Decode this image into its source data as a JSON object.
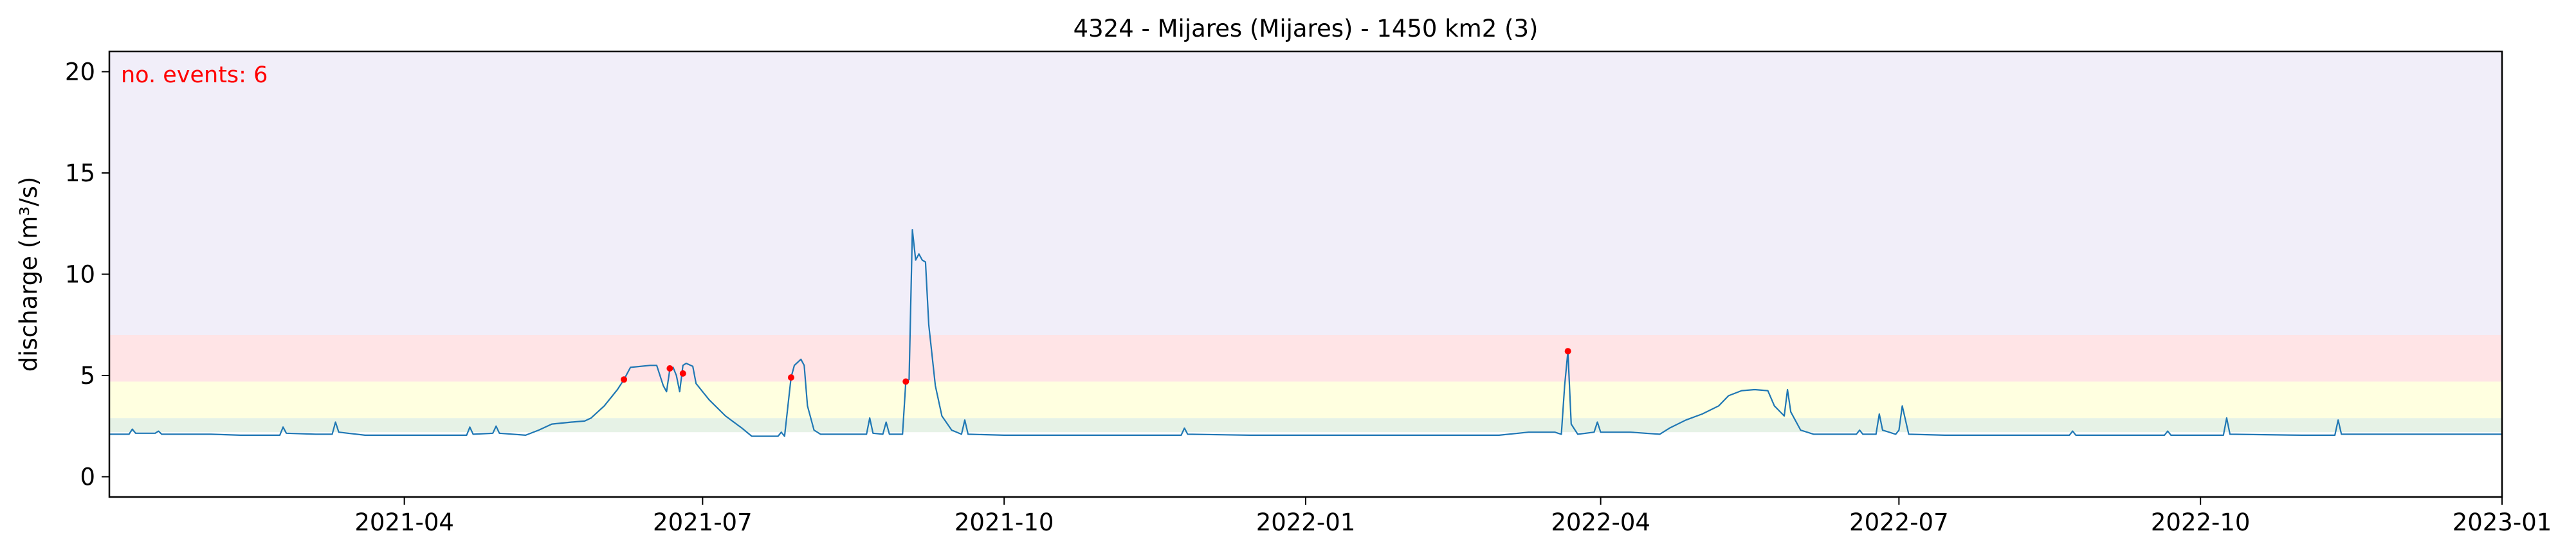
{
  "chart_data": {
    "type": "line",
    "title": "4324 - Mijares (Mijares) - 1450 km2 (3)",
    "xlabel": "",
    "ylabel": "discharge (m³/s)",
    "ylim": [
      -1,
      21
    ],
    "xlim": [
      "2021-01-01",
      "2023-01-01"
    ],
    "yticks": [
      0,
      5,
      10,
      15,
      20
    ],
    "xticks": [
      "2021-04-01",
      "2021-07-01",
      "2021-10-01",
      "2022-01-01",
      "2022-04-01",
      "2022-07-01",
      "2022-10-01",
      "2023-01-01"
    ],
    "xtick_labels": [
      "2021-04",
      "2021-07",
      "2021-10",
      "2022-01",
      "2022-04",
      "2022-07",
      "2022-10",
      "2023-01"
    ],
    "annotation": "no. events: 6",
    "annotation_color": "#ff0000",
    "grid": false,
    "bands": [
      {
        "from": 2.2,
        "to": 2.9,
        "color": "#e6f2e6"
      },
      {
        "from": 2.9,
        "to": 4.7,
        "color": "#ffffe0"
      },
      {
        "from": 4.7,
        "to": 7.0,
        "color": "#ffe4e6"
      },
      {
        "from": 7.0,
        "to": 21,
        "color": "#f1eef9"
      }
    ],
    "series": [
      {
        "color": "#1f77b4",
        "points": [
          [
            "2021-01-01",
            2.1
          ],
          [
            "2021-01-07",
            2.1
          ],
          [
            "2021-01-08",
            2.35
          ],
          [
            "2021-01-09",
            2.15
          ],
          [
            "2021-01-15",
            2.15
          ],
          [
            "2021-01-16",
            2.25
          ],
          [
            "2021-01-17",
            2.1
          ],
          [
            "2021-01-25",
            2.1
          ],
          [
            "2021-02-01",
            2.1
          ],
          [
            "2021-02-10",
            2.05
          ],
          [
            "2021-02-22",
            2.05
          ],
          [
            "2021-02-23",
            2.45
          ],
          [
            "2021-02-24",
            2.15
          ],
          [
            "2021-03-05",
            2.1
          ],
          [
            "2021-03-10",
            2.1
          ],
          [
            "2021-03-11",
            2.7
          ],
          [
            "2021-03-12",
            2.2
          ],
          [
            "2021-03-20",
            2.05
          ],
          [
            "2021-04-01",
            2.05
          ],
          [
            "2021-04-10",
            2.05
          ],
          [
            "2021-04-20",
            2.05
          ],
          [
            "2021-04-21",
            2.45
          ],
          [
            "2021-04-22",
            2.1
          ],
          [
            "2021-04-28",
            2.15
          ],
          [
            "2021-04-29",
            2.5
          ],
          [
            "2021-04-30",
            2.15
          ],
          [
            "2021-05-08",
            2.05
          ],
          [
            "2021-05-12",
            2.3
          ],
          [
            "2021-05-16",
            2.6
          ],
          [
            "2021-05-22",
            2.7
          ],
          [
            "2021-05-26",
            2.75
          ],
          [
            "2021-05-28",
            2.9
          ],
          [
            "2021-06-01",
            3.5
          ],
          [
            "2021-06-05",
            4.3
          ],
          [
            "2021-06-07",
            4.8
          ],
          [
            "2021-06-09",
            5.4
          ],
          [
            "2021-06-15",
            5.5
          ],
          [
            "2021-06-17",
            5.5
          ],
          [
            "2021-06-19",
            4.5
          ],
          [
            "2021-06-20",
            4.2
          ],
          [
            "2021-06-21",
            5.3
          ],
          [
            "2021-06-22",
            5.4
          ],
          [
            "2021-06-23",
            5.0
          ],
          [
            "2021-06-24",
            4.2
          ],
          [
            "2021-06-25",
            5.5
          ],
          [
            "2021-06-26",
            5.6
          ],
          [
            "2021-06-28",
            5.45
          ],
          [
            "2021-06-29",
            4.6
          ],
          [
            "2021-07-03",
            3.8
          ],
          [
            "2021-07-08",
            3.0
          ],
          [
            "2021-07-13",
            2.4
          ],
          [
            "2021-07-16",
            2.0
          ],
          [
            "2021-07-20",
            2.0
          ],
          [
            "2021-07-24",
            2.0
          ],
          [
            "2021-07-25",
            2.2
          ],
          [
            "2021-07-26",
            2.0
          ],
          [
            "2021-07-28",
            4.9
          ],
          [
            "2021-07-29",
            5.5
          ],
          [
            "2021-07-31",
            5.8
          ],
          [
            "2021-08-01",
            5.5
          ],
          [
            "2021-08-02",
            3.5
          ],
          [
            "2021-08-04",
            2.3
          ],
          [
            "2021-08-06",
            2.1
          ],
          [
            "2021-08-20",
            2.1
          ],
          [
            "2021-08-21",
            2.9
          ],
          [
            "2021-08-22",
            2.15
          ],
          [
            "2021-08-25",
            2.1
          ],
          [
            "2021-08-26",
            2.7
          ],
          [
            "2021-08-27",
            2.1
          ],
          [
            "2021-08-31",
            2.1
          ],
          [
            "2021-09-01",
            4.7
          ],
          [
            "2021-09-02",
            4.8
          ],
          [
            "2021-09-03",
            12.2
          ],
          [
            "2021-09-04",
            10.7
          ],
          [
            "2021-09-05",
            11.0
          ],
          [
            "2021-09-06",
            10.7
          ],
          [
            "2021-09-07",
            10.6
          ],
          [
            "2021-09-08",
            7.5
          ],
          [
            "2021-09-10",
            4.5
          ],
          [
            "2021-09-12",
            3.0
          ],
          [
            "2021-09-15",
            2.3
          ],
          [
            "2021-09-18",
            2.1
          ],
          [
            "2021-09-19",
            2.8
          ],
          [
            "2021-09-20",
            2.1
          ],
          [
            "2021-10-01",
            2.05
          ],
          [
            "2021-10-15",
            2.05
          ],
          [
            "2021-11-01",
            2.05
          ],
          [
            "2021-11-24",
            2.05
          ],
          [
            "2021-11-25",
            2.4
          ],
          [
            "2021-11-26",
            2.1
          ],
          [
            "2021-12-15",
            2.05
          ],
          [
            "2022-01-01",
            2.05
          ],
          [
            "2022-02-01",
            2.05
          ],
          [
            "2022-03-01",
            2.05
          ],
          [
            "2022-03-10",
            2.2
          ],
          [
            "2022-03-18",
            2.2
          ],
          [
            "2022-03-20",
            2.1
          ],
          [
            "2022-03-21",
            4.5
          ],
          [
            "2022-03-22",
            6.2
          ],
          [
            "2022-03-23",
            2.6
          ],
          [
            "2022-03-25",
            2.1
          ],
          [
            "2022-03-30",
            2.2
          ],
          [
            "2022-03-31",
            2.7
          ],
          [
            "2022-04-01",
            2.2
          ],
          [
            "2022-04-10",
            2.2
          ],
          [
            "2022-04-19",
            2.1
          ],
          [
            "2022-04-22",
            2.4
          ],
          [
            "2022-04-27",
            2.8
          ],
          [
            "2022-05-02",
            3.1
          ],
          [
            "2022-05-07",
            3.5
          ],
          [
            "2022-05-10",
            4.0
          ],
          [
            "2022-05-14",
            4.25
          ],
          [
            "2022-05-18",
            4.3
          ],
          [
            "2022-05-22",
            4.25
          ],
          [
            "2022-05-24",
            3.5
          ],
          [
            "2022-05-27",
            3.0
          ],
          [
            "2022-05-28",
            4.3
          ],
          [
            "2022-05-29",
            3.2
          ],
          [
            "2022-06-01",
            2.3
          ],
          [
            "2022-06-05",
            2.1
          ],
          [
            "2022-06-18",
            2.1
          ],
          [
            "2022-06-19",
            2.3
          ],
          [
            "2022-06-20",
            2.1
          ],
          [
            "2022-06-24",
            2.1
          ],
          [
            "2022-06-25",
            3.1
          ],
          [
            "2022-06-26",
            2.3
          ],
          [
            "2022-06-30",
            2.1
          ],
          [
            "2022-07-01",
            2.3
          ],
          [
            "2022-07-02",
            3.5
          ],
          [
            "2022-07-03",
            2.8
          ],
          [
            "2022-07-04",
            2.1
          ],
          [
            "2022-07-15",
            2.05
          ],
          [
            "2022-08-01",
            2.05
          ],
          [
            "2022-08-22",
            2.05
          ],
          [
            "2022-08-23",
            2.25
          ],
          [
            "2022-08-24",
            2.05
          ],
          [
            "2022-09-20",
            2.05
          ],
          [
            "2022-09-21",
            2.25
          ],
          [
            "2022-09-22",
            2.05
          ],
          [
            "2022-10-08",
            2.05
          ],
          [
            "2022-10-09",
            2.9
          ],
          [
            "2022-10-10",
            2.1
          ],
          [
            "2022-11-01",
            2.05
          ],
          [
            "2022-11-11",
            2.05
          ],
          [
            "2022-11-12",
            2.8
          ],
          [
            "2022-11-13",
            2.1
          ],
          [
            "2022-12-01",
            2.1
          ],
          [
            "2022-12-20",
            2.1
          ],
          [
            "2023-01-01",
            2.1
          ]
        ]
      }
    ],
    "events": [
      [
        "2021-06-07",
        4.8
      ],
      [
        "2021-06-21",
        5.35
      ],
      [
        "2021-06-25",
        5.1
      ],
      [
        "2021-07-28",
        4.9
      ],
      [
        "2021-09-01",
        4.7
      ],
      [
        "2022-03-22",
        6.2
      ]
    ],
    "event_color": "#ff0000"
  }
}
